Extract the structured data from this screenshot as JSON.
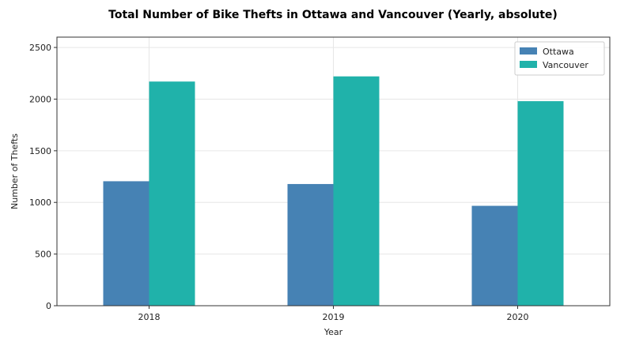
{
  "chart_data": {
    "type": "bar",
    "title": "Total Number of Bike Thefts in Ottawa and Vancouver (Yearly, absolute)",
    "xlabel": "Year",
    "ylabel": "Number of Thefts",
    "categories": [
      "2018",
      "2019",
      "2020"
    ],
    "series": [
      {
        "name": "Ottawa",
        "values": [
          1205,
          1178,
          967
        ],
        "color": "#4682b4"
      },
      {
        "name": "Vancouver",
        "values": [
          2170,
          2220,
          1980
        ],
        "color": "#20b2aa"
      }
    ],
    "ylim": [
      0,
      2600
    ],
    "yticks": [
      0,
      500,
      1000,
      1500,
      2000,
      2500
    ],
    "grid": true,
    "legend_position": "top-right"
  }
}
